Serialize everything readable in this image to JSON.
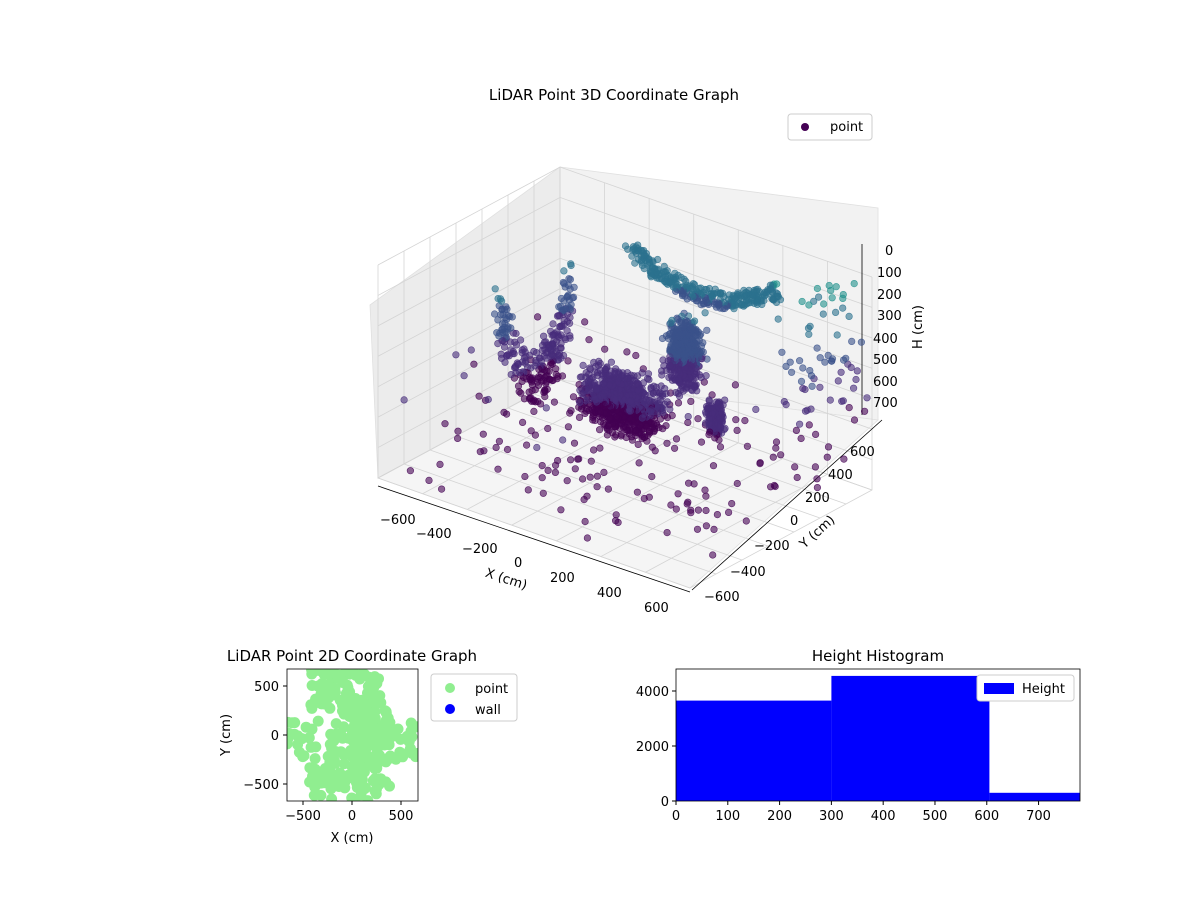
{
  "chart_data": [
    {
      "type": "scatter3d",
      "title": "LiDAR Point 3D Coordinate Graph",
      "xlabel": "X (cm)",
      "ylabel": "Y (cm)",
      "zlabel": "H (cm)",
      "x_ticks": [
        "−600",
        "−400",
        "−200",
        "0",
        "200",
        "400",
        "600"
      ],
      "y_ticks": [
        "−600",
        "−400",
        "−200",
        "0",
        "200",
        "400",
        "600"
      ],
      "z_ticks": [
        "0",
        "100",
        "200",
        "300",
        "400",
        "500",
        "600",
        "700"
      ],
      "xlim": [
        -700,
        700
      ],
      "ylim": [
        -700,
        700
      ],
      "zlim": [
        780,
        0
      ],
      "grid": true,
      "legend": {
        "position": "top-right",
        "entries": [
          {
            "name": "point",
            "color": "#440154"
          }
        ]
      },
      "colormap": "viridis",
      "series": [
        {
          "name": "point",
          "clusters": [
            {
              "shape": "arc",
              "x": [
                -420,
                -380
              ],
              "y": [
                -250,
                250
              ],
              "h": [
                120,
                600
              ],
              "count": 260
            },
            {
              "shape": "arc",
              "x": [
                -200,
                420
              ],
              "y": [
                380,
                460
              ],
              "h": [
                40,
                200
              ],
              "count": 300
            },
            {
              "shape": "blob",
              "x": [
                -250,
                250
              ],
              "y": [
                -150,
                100
              ],
              "h": [
                350,
                600
              ],
              "count": 900
            },
            {
              "shape": "blob",
              "x": [
                80,
                260
              ],
              "y": [
                60,
                280
              ],
              "h": [
                150,
                450
              ],
              "count": 500
            },
            {
              "shape": "blob",
              "x": [
                350,
                450
              ],
              "y": [
                -40,
                60
              ],
              "h": [
                350,
                500
              ],
              "count": 160
            },
            {
              "shape": "sparse",
              "x": [
                -700,
                700
              ],
              "y": [
                -700,
                700
              ],
              "h": [
                450,
                780
              ],
              "count": 170
            },
            {
              "shape": "sparse",
              "x": [
                550,
                700
              ],
              "y": [
                200,
                700
              ],
              "h": [
                0,
                500
              ],
              "count": 70
            }
          ]
        }
      ]
    },
    {
      "type": "scatter",
      "title": "LiDAR Point 2D Coordinate Graph",
      "xlabel": "X (cm)",
      "ylabel": "Y (cm)",
      "x_ticks": [
        "−500",
        "0",
        "500"
      ],
      "y_ticks": [
        "500",
        "0",
        "−500"
      ],
      "xlim": [
        -680,
        680
      ],
      "ylim": [
        -680,
        680
      ],
      "legend": {
        "position": "outside-right",
        "entries": [
          {
            "name": "point",
            "color": "#90ee90"
          },
          {
            "name": "wall",
            "color": "#0000ff"
          }
        ]
      },
      "series": [
        {
          "name": "point",
          "color": "#90ee90",
          "regions": [
            {
              "x": [
                -680,
                680
              ],
              "y": [
                -250,
                150
              ],
              "count": 90
            },
            {
              "x": [
                -120,
                300
              ],
              "y": [
                150,
                680
              ],
              "count": 60
            },
            {
              "x": [
                -450,
                -100
              ],
              "y": [
                250,
                680
              ],
              "count": 45
            },
            {
              "x": [
                -450,
                400
              ],
              "y": [
                -680,
                -250
              ],
              "count": 70
            },
            {
              "x": [
                0,
                400
              ],
              "y": [
                -250,
                250
              ],
              "count": 50
            }
          ]
        }
      ]
    },
    {
      "type": "histogram",
      "title": "Height Histogram",
      "xlabel": "",
      "ylabel": "",
      "x_ticks": [
        "0",
        "100",
        "200",
        "300",
        "400",
        "500",
        "600",
        "700"
      ],
      "y_ticks": [
        "0",
        "2000",
        "4000"
      ],
      "xlim": [
        0,
        780
      ],
      "ylim": [
        0,
        4800
      ],
      "color": "#0000ff",
      "legend": {
        "position": "top-right",
        "entries": [
          {
            "name": "Height",
            "color": "#0000ff"
          }
        ]
      },
      "bins": [
        {
          "start": 0,
          "end": 300,
          "count": 3650
        },
        {
          "start": 300,
          "end": 605,
          "count": 4550
        },
        {
          "start": 605,
          "end": 780,
          "count": 300
        }
      ]
    }
  ]
}
